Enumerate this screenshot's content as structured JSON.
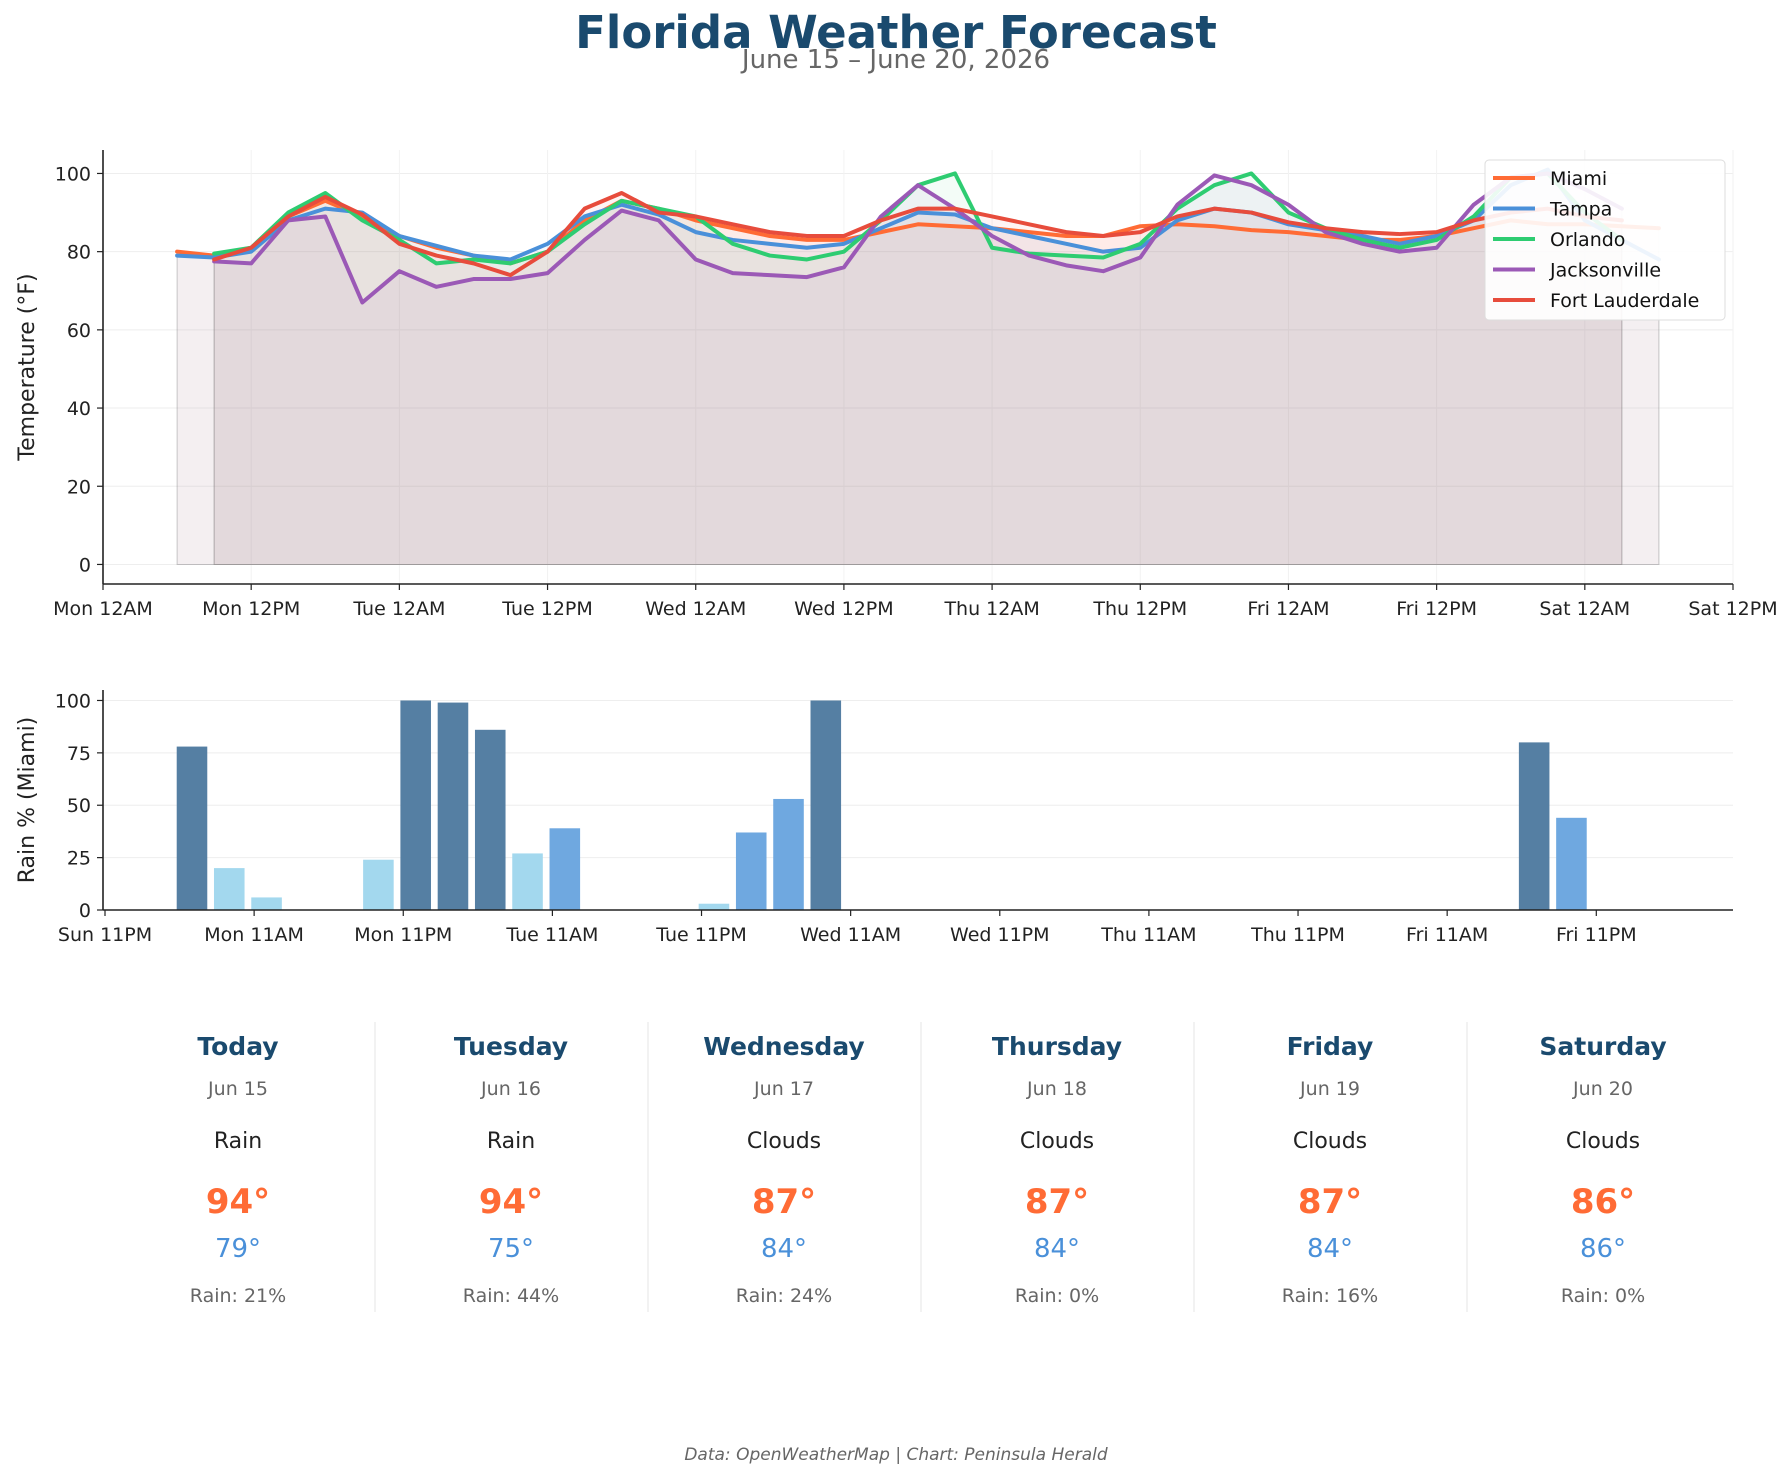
{
  "header": {
    "title": "Florida Weather Forecast",
    "subtitle": "June 15 – June 20, 2026"
  },
  "colors": {
    "Miami": "#ff6b35",
    "Tampa": "#4a90d9",
    "Orlando": "#2ecc71",
    "Jacksonville": "#9b59b6",
    "Fort Lauderdale": "#e74c3c",
    "rain_high": "#557fa3",
    "rain_mid": "#6fa8e0",
    "rain_low": "#a3d8ee"
  },
  "chart_data": [
    {
      "type": "line",
      "ylabel": "Temperature (°F)",
      "xlabel": "",
      "x_unit": "hours after Mon 12AM (June 15, 2026)",
      "xlim": [
        0,
        120
      ],
      "ylim": [
        -5,
        106
      ],
      "y_ticks": [
        0,
        20,
        40,
        60,
        80,
        100
      ],
      "x_ticks": [
        {
          "t": 0,
          "label": "Mon 12AM"
        },
        {
          "t": 12,
          "label": "Mon 12PM"
        },
        {
          "t": 24,
          "label": "Tue 12AM"
        },
        {
          "t": 36,
          "label": "Tue 12PM"
        },
        {
          "t": 48,
          "label": "Wed 12AM"
        },
        {
          "t": 60,
          "label": "Wed 12PM"
        },
        {
          "t": 72,
          "label": "Thu 12AM"
        },
        {
          "t": 84,
          "label": "Thu 12PM"
        },
        {
          "t": 96,
          "label": "Fri 12AM"
        },
        {
          "t": 108,
          "label": "Fri 12PM"
        },
        {
          "t": 120,
          "label": "Sat 12AM"
        },
        {
          "t": 132,
          "label": "Sat 12PM"
        }
      ],
      "legend_position": "top-right",
      "series": [
        {
          "name": "Miami",
          "x": [
            6,
            9,
            12,
            15,
            18,
            21,
            24,
            27,
            30,
            33,
            36,
            39,
            42,
            45,
            48,
            51,
            54,
            57,
            60,
            63,
            66,
            69,
            72,
            75,
            78,
            81,
            84,
            87,
            90,
            93,
            96,
            99,
            102,
            105,
            108,
            111,
            114,
            117,
            120,
            123,
            126
          ],
          "y": [
            80,
            79,
            81,
            89,
            93,
            89,
            84,
            81,
            79,
            77,
            80,
            88,
            93,
            91,
            88,
            86,
            84,
            83,
            83,
            85,
            87,
            86.5,
            86,
            85,
            84,
            84,
            86.5,
            87,
            86.5,
            85.5,
            85,
            84,
            83,
            83,
            84,
            86,
            88,
            87,
            87,
            86.5,
            86
          ]
        },
        {
          "name": "Tampa",
          "x": [
            6,
            9,
            12,
            15,
            18,
            21,
            24,
            27,
            30,
            33,
            36,
            39,
            42,
            45,
            48,
            51,
            54,
            57,
            60,
            63,
            66,
            69,
            72,
            75,
            78,
            81,
            84,
            87,
            90,
            93,
            96,
            99,
            102,
            105,
            108,
            111,
            114,
            117,
            120,
            123,
            126
          ],
          "y": [
            79,
            78.5,
            80,
            88,
            91,
            90,
            84,
            81.5,
            79,
            78,
            82,
            89,
            92,
            89.5,
            85,
            83,
            82,
            81,
            82,
            86,
            90,
            89.5,
            86,
            84,
            82,
            80,
            81,
            88,
            91,
            90,
            87,
            85.5,
            84,
            82,
            84,
            88,
            97,
            101,
            88,
            83,
            78
          ]
        },
        {
          "name": "Orlando",
          "x": [
            9,
            12,
            15,
            18,
            21,
            24,
            27,
            30,
            33,
            36,
            39,
            42,
            45,
            48,
            51,
            54,
            57,
            60,
            63,
            66,
            69,
            72,
            75,
            78,
            81,
            84,
            87,
            90,
            93,
            96,
            99,
            102,
            105,
            108,
            111,
            114,
            117,
            120,
            123
          ],
          "y": [
            79.5,
            81,
            90,
            95,
            88,
            83,
            77,
            78,
            77,
            80,
            87,
            93,
            91,
            89,
            82,
            79,
            78,
            80,
            88,
            97,
            100,
            81,
            79.5,
            79,
            78.5,
            82,
            91,
            97,
            100,
            90,
            86,
            83,
            81,
            83,
            89,
            99,
            100,
            90,
            83
          ]
        },
        {
          "name": "Jacksonville",
          "x": [
            9,
            12,
            15,
            18,
            21,
            24,
            27,
            30,
            33,
            36,
            39,
            42,
            45,
            48,
            51,
            54,
            57,
            60,
            63,
            66,
            69,
            72,
            75,
            78,
            81,
            84,
            87,
            90,
            93,
            96,
            99,
            102,
            105,
            108,
            111,
            114,
            117,
            120,
            123
          ],
          "y": [
            77.5,
            77,
            88,
            89,
            67,
            75,
            71,
            73,
            73,
            74.5,
            83,
            90.5,
            88,
            78,
            74.5,
            74,
            73.5,
            76,
            89,
            97,
            91,
            84,
            79,
            76.5,
            75,
            78.5,
            92,
            99.5,
            97,
            92,
            85,
            82,
            80,
            81,
            92,
            99,
            100,
            96,
            91
          ]
        },
        {
          "name": "Fort Lauderdale",
          "x": [
            9,
            12,
            15,
            18,
            21,
            24,
            27,
            30,
            33,
            36,
            39,
            42,
            45,
            48,
            51,
            54,
            57,
            60,
            63,
            66,
            69,
            72,
            75,
            78,
            81,
            84,
            87,
            90,
            93,
            96,
            99,
            102,
            105,
            108,
            111,
            114,
            117,
            120,
            123
          ],
          "y": [
            78,
            81,
            89,
            94,
            89.5,
            82,
            79,
            77,
            74,
            80,
            91,
            95,
            90,
            89,
            87,
            85,
            84,
            84,
            88,
            91,
            91,
            89,
            87,
            85,
            84,
            85,
            89,
            91,
            90,
            87.5,
            86,
            85,
            84.5,
            85,
            88,
            90,
            91,
            89,
            88
          ]
        }
      ]
    },
    {
      "type": "bar",
      "ylabel": "Rain % (Miami)",
      "xlabel": "",
      "x_unit": "hours after Sun 11PM (June 14, 2026)",
      "xlim": [
        0,
        131
      ],
      "ylim": [
        0,
        105
      ],
      "y_ticks": [
        0,
        25,
        50,
        75,
        100
      ],
      "x_ticks": [
        {
          "t": 0,
          "label": "Sun 11PM"
        },
        {
          "t": 12,
          "label": "Mon 11AM"
        },
        {
          "t": 24,
          "label": "Mon 11PM"
        },
        {
          "t": 36,
          "label": "Tue 11AM"
        },
        {
          "t": 48,
          "label": "Tue 11PM"
        },
        {
          "t": 60,
          "label": "Wed 11AM"
        },
        {
          "t": 72,
          "label": "Wed 11PM"
        },
        {
          "t": 84,
          "label": "Thu 11AM"
        },
        {
          "t": 96,
          "label": "Thu 11PM"
        },
        {
          "t": 108,
          "label": "Fri 11AM"
        },
        {
          "t": 120,
          "label": "Fri 11PM"
        }
      ],
      "x": [
        7,
        10,
        13,
        16,
        19,
        22,
        25,
        28,
        31,
        34,
        37,
        40,
        43,
        46,
        49,
        52,
        55,
        58,
        61,
        64,
        67,
        70,
        73,
        76,
        79,
        82,
        85,
        88,
        91,
        94,
        97,
        100,
        103,
        106,
        109,
        112,
        115,
        118,
        121,
        124,
        127
      ],
      "values": [
        78,
        20,
        6,
        0,
        0,
        24,
        100,
        99,
        86,
        27,
        39,
        0,
        0,
        0,
        3,
        37,
        53,
        100,
        0,
        0,
        0,
        0,
        0,
        0,
        0,
        0,
        0,
        0,
        0,
        0,
        0,
        0,
        0,
        0,
        0,
        0,
        80,
        44,
        0,
        0,
        0
      ]
    }
  ],
  "forecast": [
    {
      "day": "Today",
      "date": "Jun 15",
      "condition": "Rain",
      "high": "94°",
      "low": "79°",
      "rain": "Rain: 21%"
    },
    {
      "day": "Tuesday",
      "date": "Jun 16",
      "condition": "Rain",
      "high": "94°",
      "low": "75°",
      "rain": "Rain: 44%"
    },
    {
      "day": "Wednesday",
      "date": "Jun 17",
      "condition": "Clouds",
      "high": "87°",
      "low": "84°",
      "rain": "Rain: 24%"
    },
    {
      "day": "Thursday",
      "date": "Jun 18",
      "condition": "Clouds",
      "high": "87°",
      "low": "84°",
      "rain": "Rain: 0%"
    },
    {
      "day": "Friday",
      "date": "Jun 19",
      "condition": "Clouds",
      "high": "87°",
      "low": "84°",
      "rain": "Rain: 16%"
    },
    {
      "day": "Saturday",
      "date": "Jun 20",
      "condition": "Clouds",
      "high": "86°",
      "low": "86°",
      "rain": "Rain: 0%"
    }
  ],
  "footer": {
    "credit": "Data: OpenWeatherMap | Chart: Peninsula Herald"
  }
}
